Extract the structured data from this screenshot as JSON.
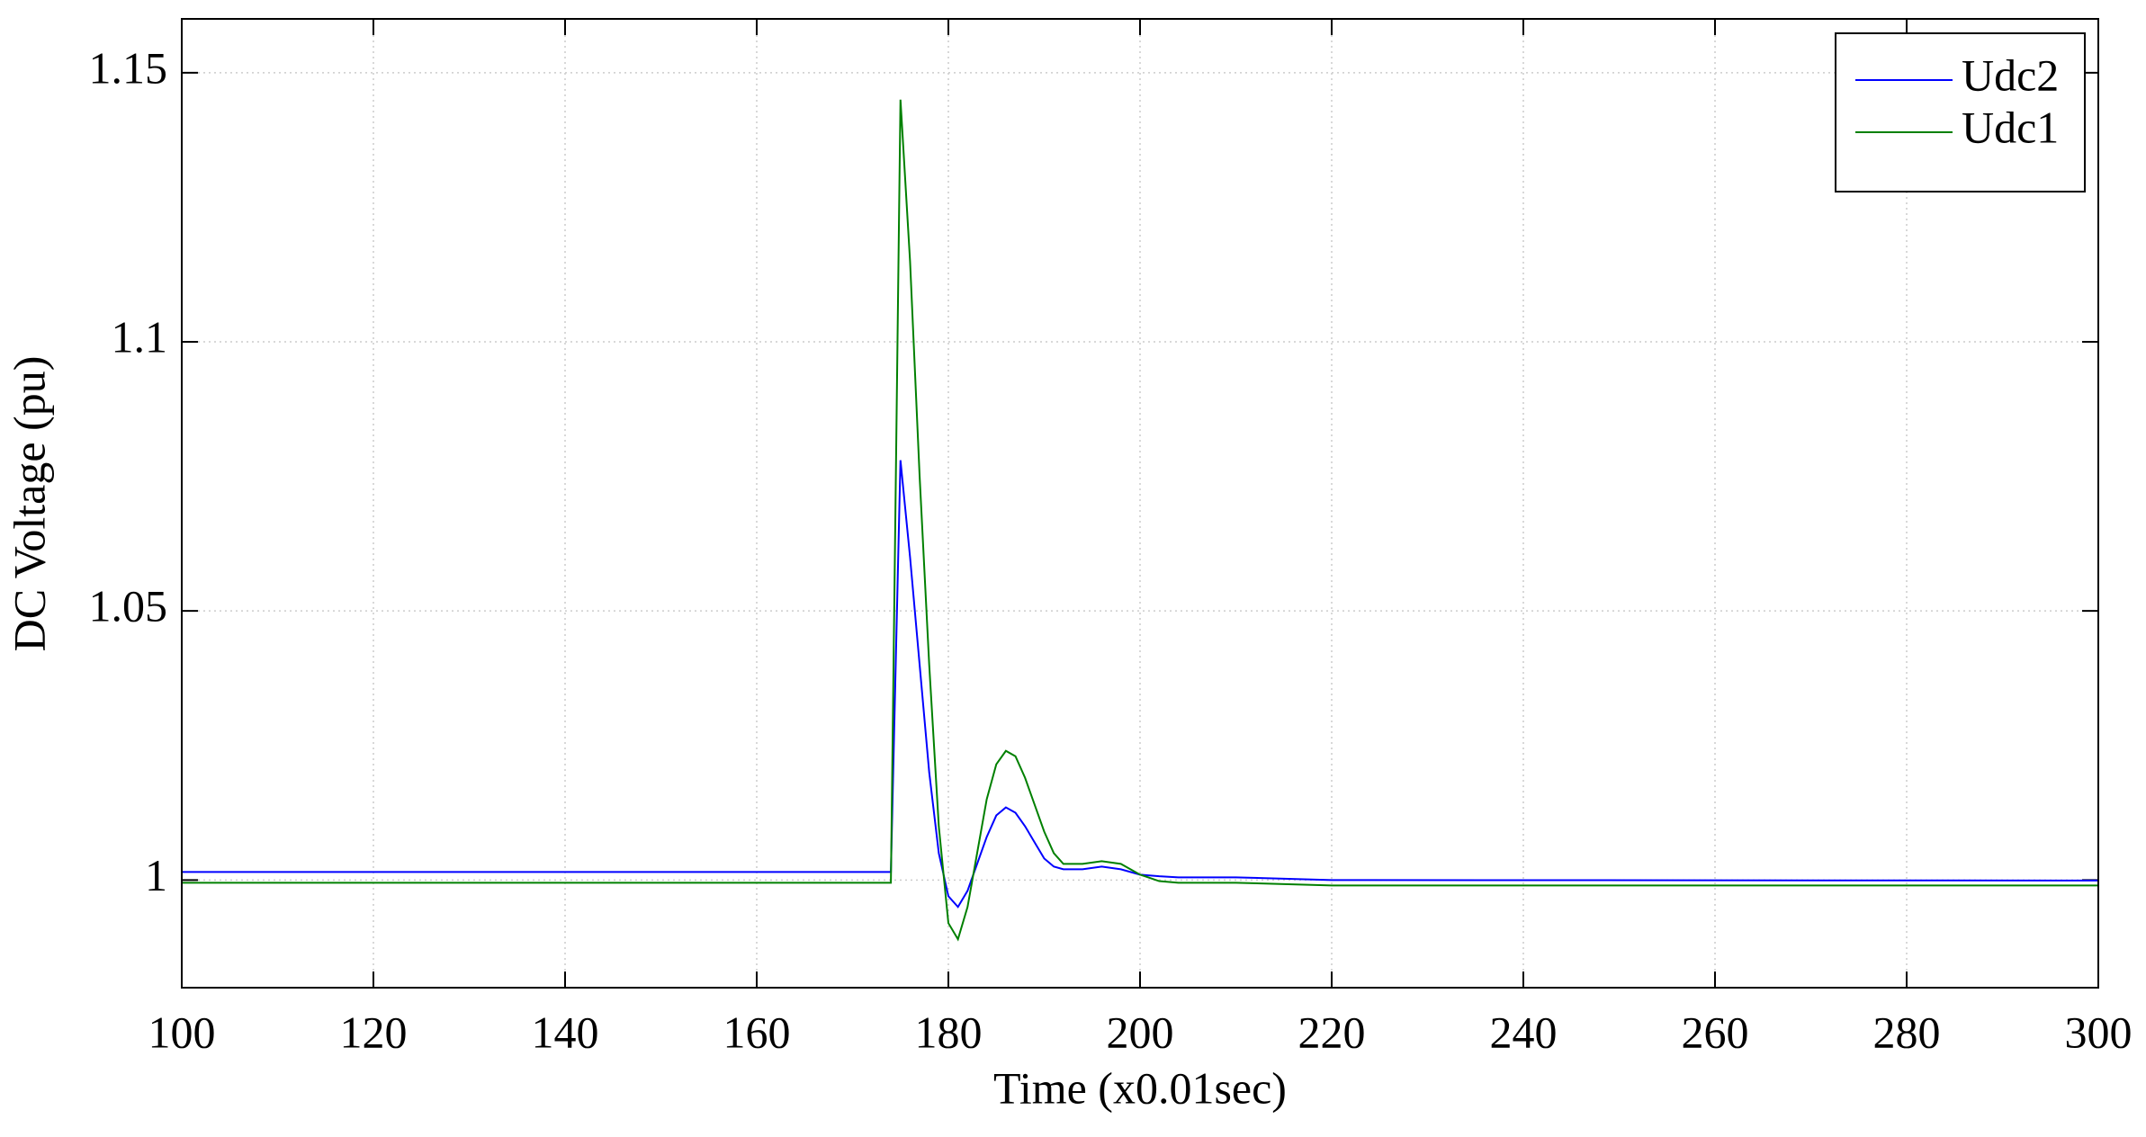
{
  "chart_data": {
    "type": "line",
    "xlabel": "Time (x0.01sec)",
    "ylabel": "DC Voltage (pu)",
    "xlim": [
      100,
      300
    ],
    "xticks": [
      100,
      120,
      140,
      160,
      180,
      200,
      220,
      240,
      260,
      280,
      300
    ],
    "ylim": [
      0.98,
      1.16
    ],
    "yticks": [
      1,
      1.05,
      1.1,
      1.15
    ],
    "grid": true,
    "legend": "upper right",
    "x": [
      100,
      174,
      175,
      176,
      177,
      178,
      179,
      180,
      181,
      182,
      183,
      184,
      185,
      186,
      187,
      188,
      189,
      190,
      191,
      192,
      194,
      196,
      198,
      200,
      202,
      204,
      210,
      220,
      300
    ],
    "series": [
      {
        "name": "Udc2",
        "color": "#0000ff",
        "values": [
          1.0015,
          1.0015,
          1.078,
          1.06,
          1.04,
          1.02,
          1.005,
          0.997,
          0.995,
          0.998,
          1.003,
          1.008,
          1.012,
          1.0135,
          1.0125,
          1.01,
          1.007,
          1.004,
          1.0025,
          1.002,
          1.002,
          1.0025,
          1.002,
          1.001,
          1.0007,
          1.0005,
          1.0005,
          1.0,
          0.9999
        ]
      },
      {
        "name": "Udc1",
        "color": "#008000",
        "values": [
          0.9995,
          0.9995,
          1.145,
          1.115,
          1.075,
          1.04,
          1.01,
          0.992,
          0.989,
          0.995,
          1.005,
          1.015,
          1.0215,
          1.024,
          1.023,
          1.019,
          1.014,
          1.009,
          1.005,
          1.003,
          1.003,
          1.0035,
          1.003,
          1.001,
          0.9998,
          0.9995,
          0.9995,
          0.999,
          0.999
        ]
      }
    ]
  }
}
